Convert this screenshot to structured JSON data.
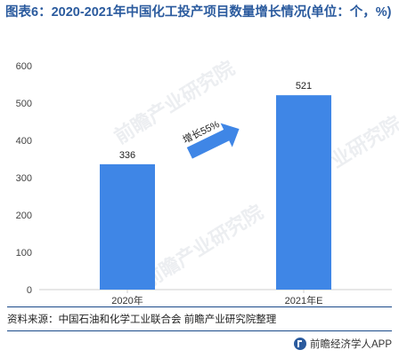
{
  "title": "图表6：2020-2021年中国化工投产项目数量增长情况(单位：个，%)",
  "source": "资料来源：中国石油和化学工业联合会 前瞻产业研究院整理",
  "footer": "前瞻经济学人APP",
  "watermark": "前瞻产业研究院",
  "colors": {
    "bar": "#3f86e6",
    "title": "#2b5b9e",
    "arrow": "#3f86e6"
  },
  "chart_data": {
    "type": "bar",
    "categories": [
      "2020年",
      "2021年E"
    ],
    "values": [
      336,
      521
    ],
    "ylim": [
      0,
      600
    ],
    "yticks": [
      0,
      100,
      200,
      300,
      400,
      500,
      600
    ],
    "ytick_labels": [
      "0",
      "100",
      "200",
      "300",
      "400",
      "500",
      "600"
    ],
    "annotation": "增长55%",
    "grid": false
  }
}
